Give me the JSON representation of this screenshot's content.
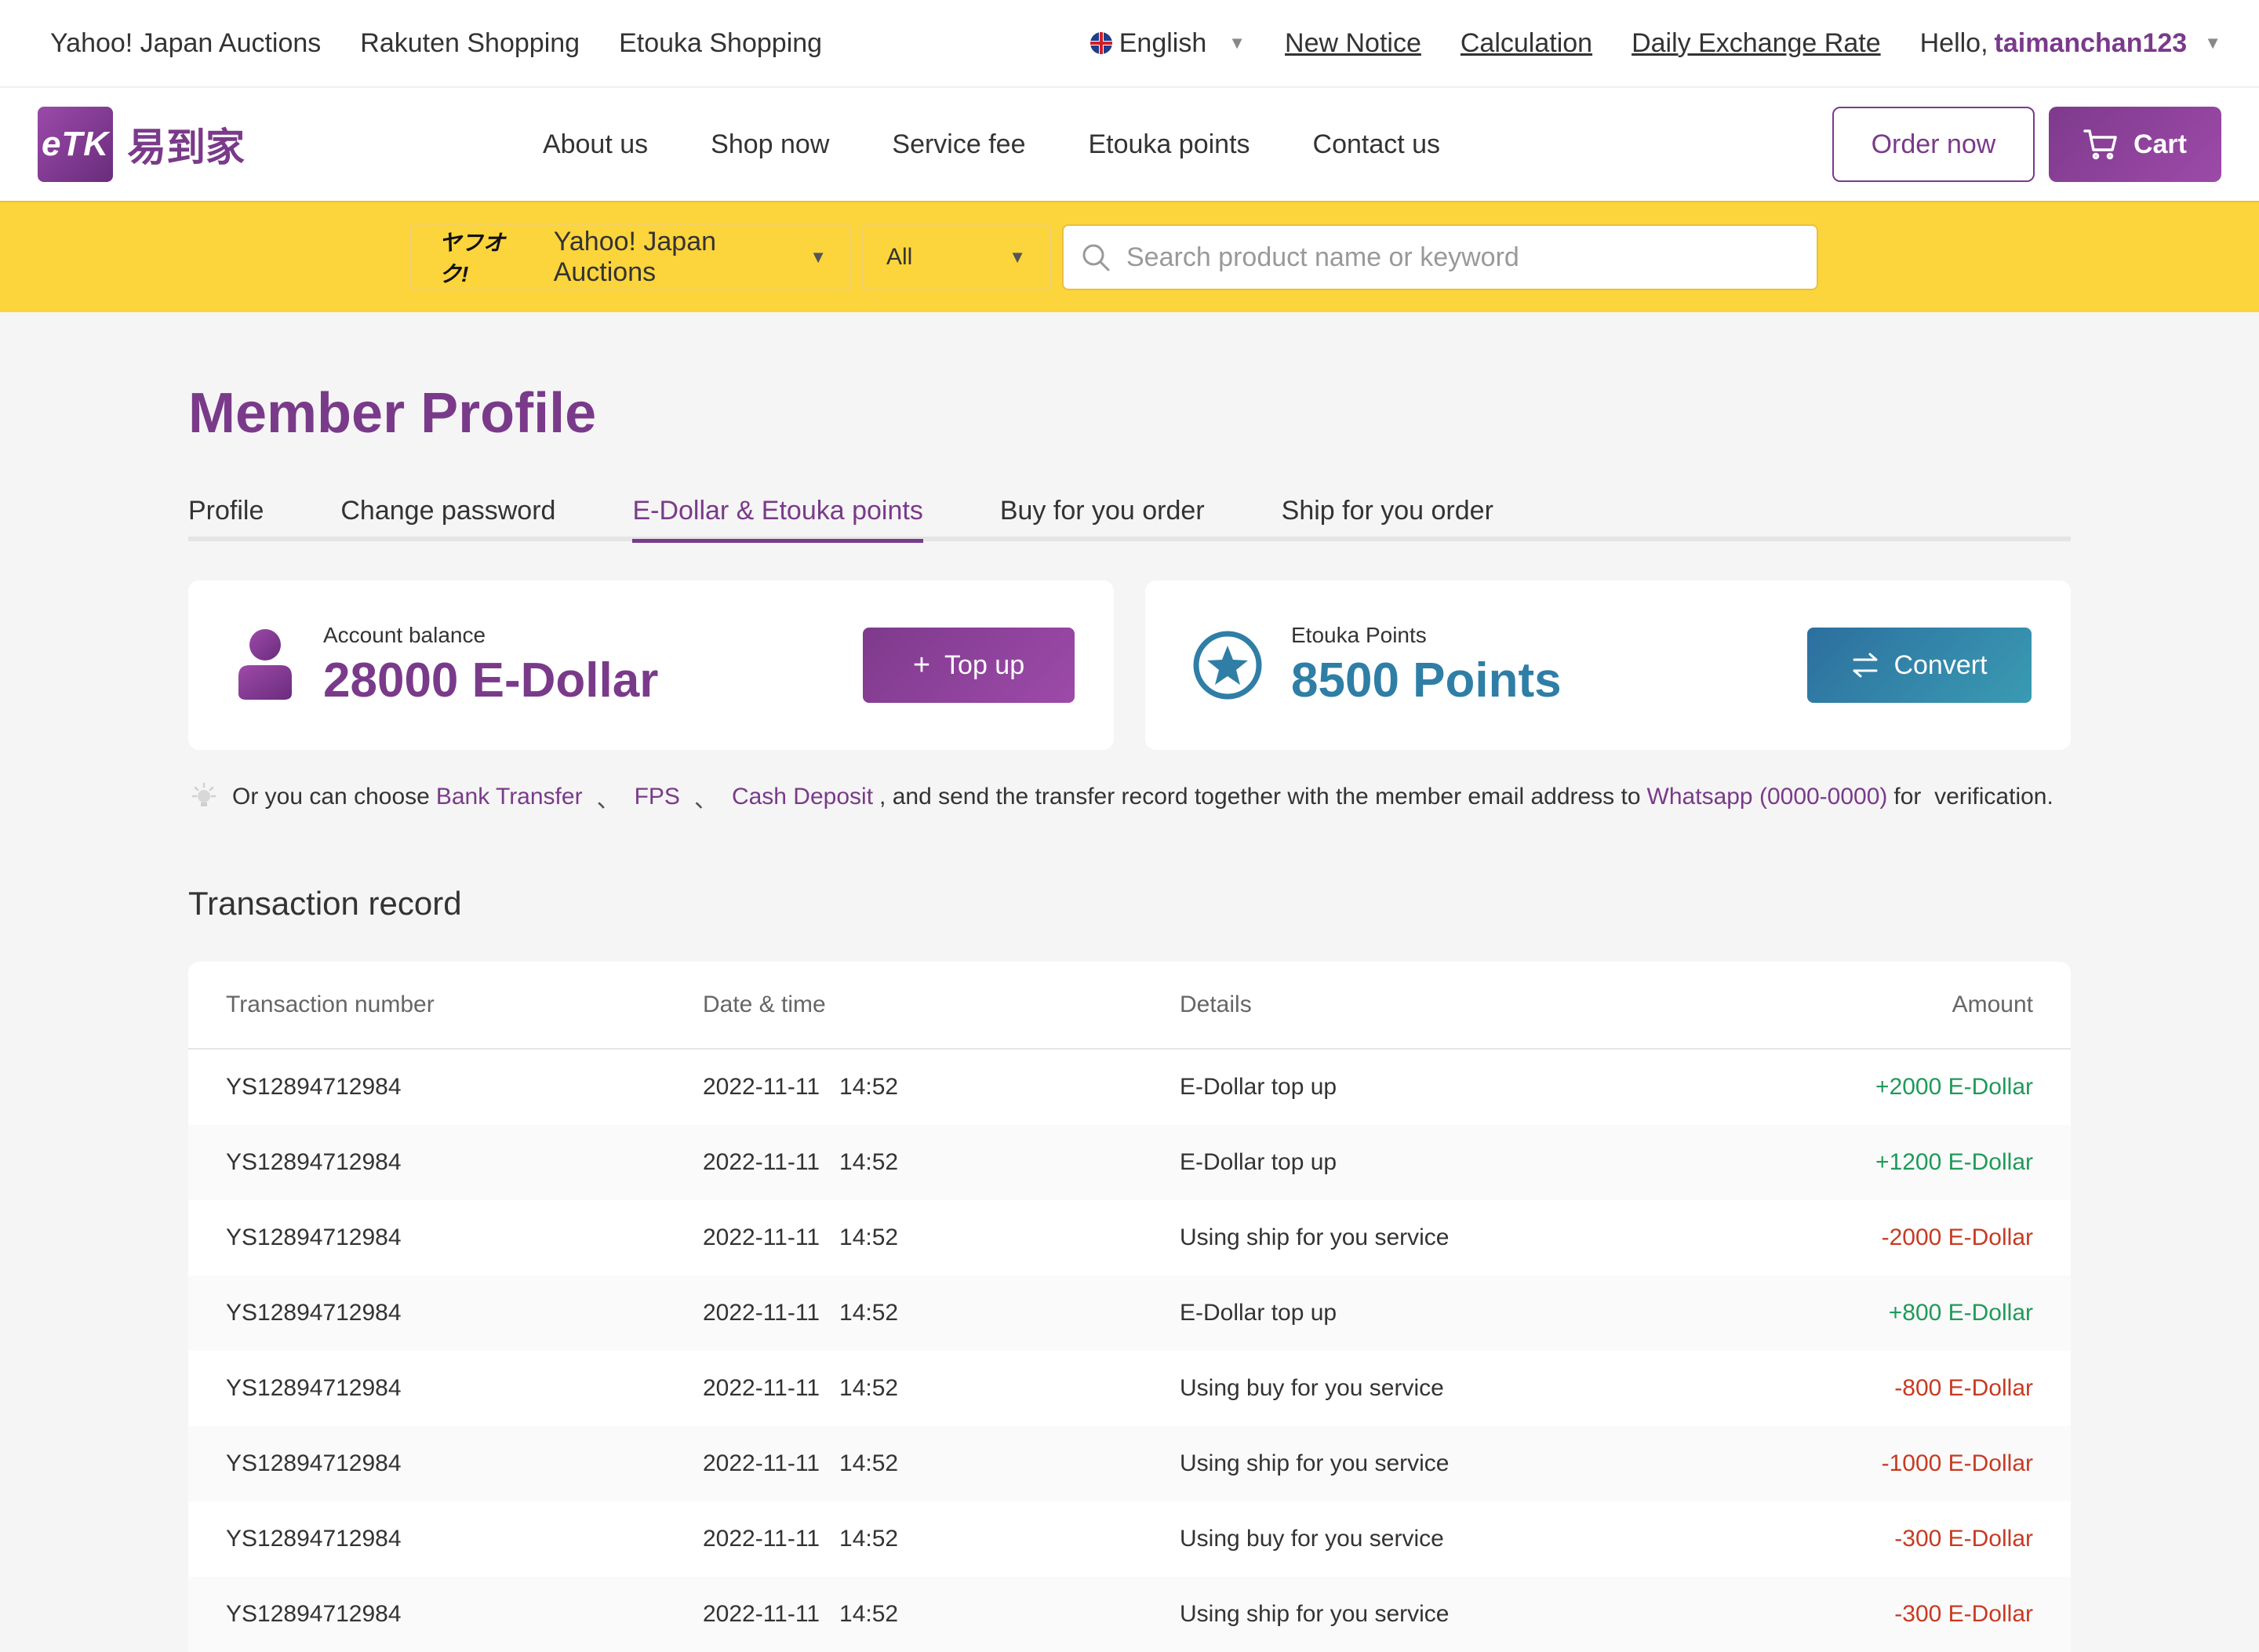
{
  "topbar": {
    "links": [
      "Yahoo! Japan Auctions",
      "Rakuten Shopping",
      "Etouka Shopping"
    ],
    "language": "English",
    "new_notice": "New Notice",
    "calculation": "Calculation",
    "exchange_rate": "Daily Exchange Rate",
    "greeting": "Hello,",
    "username": "taimanchan123"
  },
  "header": {
    "logo_badge": "eTK",
    "logo_text": "易到家",
    "nav": [
      "About us",
      "Shop now",
      "Service fee",
      "Etouka points",
      "Contact us"
    ],
    "order_now": "Order now",
    "cart": "Cart"
  },
  "search": {
    "platform_logo": "ヤフオク!",
    "platform": "Yahoo! Japan Auctions",
    "category": "All",
    "placeholder": "Search product name or keyword"
  },
  "page": {
    "title": "Member Profile",
    "tabs": [
      "Profile",
      "Change password",
      "E-Dollar & Etouka points",
      "Buy for you order",
      "Ship for you order"
    ],
    "active_tab": "E-Dollar & Etouka points"
  },
  "balance": {
    "label": "Account balance",
    "value": "28000 E-Dollar",
    "topup": "Top up"
  },
  "points": {
    "label": "Etouka Points",
    "value": "8500 Points",
    "convert": "Convert"
  },
  "notice": {
    "prefix": "Or you can choose",
    "bank": "Bank Transfer",
    "fps": "FPS",
    "cash": "Cash Deposit",
    "middle": ", and send the transfer record together with the member email address to",
    "whatsapp": "Whatsapp (0000-0000)",
    "suffix": "for  verification."
  },
  "transactions": {
    "title": "Transaction record",
    "columns": [
      "Transaction number",
      "Date & time",
      "Details",
      "Amount"
    ],
    "rows": [
      {
        "id": "YS12894712984",
        "date": "2022-11-11   14:52",
        "details": "E-Dollar top up",
        "amount": "+2000 E-Dollar",
        "sign": "pos"
      },
      {
        "id": "YS12894712984",
        "date": "2022-11-11   14:52",
        "details": "E-Dollar top up",
        "amount": "+1200 E-Dollar",
        "sign": "pos"
      },
      {
        "id": "YS12894712984",
        "date": "2022-11-11   14:52",
        "details": "Using ship for you service",
        "amount": "-2000 E-Dollar",
        "sign": "neg"
      },
      {
        "id": "YS12894712984",
        "date": "2022-11-11   14:52",
        "details": "E-Dollar top up",
        "amount": "+800 E-Dollar",
        "sign": "pos"
      },
      {
        "id": "YS12894712984",
        "date": "2022-11-11   14:52",
        "details": "Using buy for you service",
        "amount": "-800 E-Dollar",
        "sign": "neg"
      },
      {
        "id": "YS12894712984",
        "date": "2022-11-11   14:52",
        "details": "Using ship for you service",
        "amount": "-1000 E-Dollar",
        "sign": "neg"
      },
      {
        "id": "YS12894712984",
        "date": "2022-11-11   14:52",
        "details": "Using buy for you service",
        "amount": "-300 E-Dollar",
        "sign": "neg"
      },
      {
        "id": "YS12894712984",
        "date": "2022-11-11   14:52",
        "details": "Using ship for you service",
        "amount": "-300 E-Dollar",
        "sign": "neg"
      }
    ]
  },
  "colors": {
    "brand_purple": "#7a3a8a",
    "search_band": "#fcd43c",
    "points_teal": "#2f7ea6",
    "positive": "#1f9a5a",
    "negative": "#c83a22"
  },
  "icons": {
    "flag": "uk-flag-icon",
    "cart": "cart-icon",
    "search": "search-icon",
    "user": "user-icon",
    "star": "star-badge-icon",
    "plus": "plus-icon",
    "convert": "swap-arrows-icon",
    "bulb": "lightbulb-icon"
  }
}
